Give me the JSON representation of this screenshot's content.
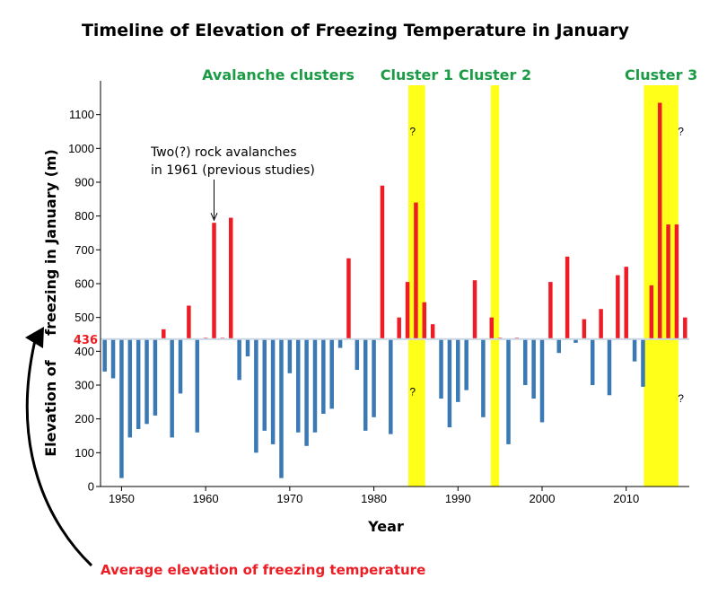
{
  "chart_data": {
    "type": "bar",
    "title": "Timeline of Elevation of Freezing Temperature in January",
    "xlabel": "Year",
    "ylabel_line1": "freezing in January (m)",
    "ylabel_line2": "Elevation of",
    "xlim": [
      1947.5,
      2017.5
    ],
    "ylim": [
      0,
      1200
    ],
    "xticks": [
      1950,
      1960,
      1970,
      1980,
      1990,
      2000,
      2010
    ],
    "yticks": [
      0,
      100,
      200,
      300,
      400,
      500,
      600,
      700,
      800,
      900,
      1000,
      1100
    ],
    "baseline": 436,
    "baseline_label": "436",
    "baseline_caption": "Average elevation of freezing temperature",
    "colors": {
      "above": "#ee1c24",
      "below": "#3a79b4",
      "cluster": "#ffff1a",
      "cluster_text": "#1c9b46",
      "highlight": "#ee1c24"
    },
    "years": [
      1948,
      1949,
      1950,
      1951,
      1952,
      1953,
      1954,
      1955,
      1956,
      1957,
      1958,
      1959,
      1960,
      1961,
      1962,
      1963,
      1964,
      1965,
      1966,
      1967,
      1968,
      1969,
      1970,
      1971,
      1972,
      1973,
      1974,
      1975,
      1976,
      1977,
      1978,
      1979,
      1980,
      1981,
      1982,
      1983,
      1984,
      1985,
      1986,
      1987,
      1988,
      1989,
      1990,
      1991,
      1992,
      1993,
      1994,
      1995,
      1996,
      1997,
      1998,
      1999,
      2000,
      2001,
      2002,
      2003,
      2004,
      2005,
      2006,
      2007,
      2008,
      2009,
      2010,
      2011,
      2012,
      2013,
      2014,
      2015,
      2016,
      2017
    ],
    "values": [
      340,
      320,
      25,
      145,
      170,
      185,
      210,
      465,
      145,
      275,
      535,
      160,
      440,
      780,
      440,
      795,
      315,
      385,
      100,
      165,
      125,
      25,
      335,
      160,
      120,
      160,
      215,
      230,
      410,
      675,
      345,
      165,
      205,
      890,
      155,
      500,
      605,
      840,
      545,
      480,
      260,
      175,
      250,
      285,
      610,
      205,
      500,
      440,
      125,
      440,
      300,
      260,
      190,
      605,
      395,
      680,
      425,
      495,
      300,
      525,
      270,
      625,
      650,
      370,
      295,
      595,
      1135,
      775,
      775,
      500
    ],
    "clusters_title": "Avalanche clusters",
    "clusters": [
      {
        "label": "Cluster 1",
        "start": 1984.1,
        "end": 1986.1
      },
      {
        "label": "Cluster 2",
        "start": 1993.9,
        "end": 1994.9
      },
      {
        "label": "Cluster 3",
        "start": 2012.1,
        "end": 2016.2
      }
    ],
    "question_marks": [
      {
        "text": "?",
        "x": 1984.6,
        "y": 1040
      },
      {
        "text": "?",
        "x": 1984.6,
        "y": 270
      },
      {
        "text": "?",
        "x": 2016.5,
        "y": 1040
      },
      {
        "text": "?",
        "x": 2016.5,
        "y": 250
      }
    ],
    "annotation": {
      "lines": [
        "Two(?) rock avalanches",
        "in 1961 (previous studies)"
      ],
      "target_year": 1961,
      "target_value": 780
    }
  }
}
